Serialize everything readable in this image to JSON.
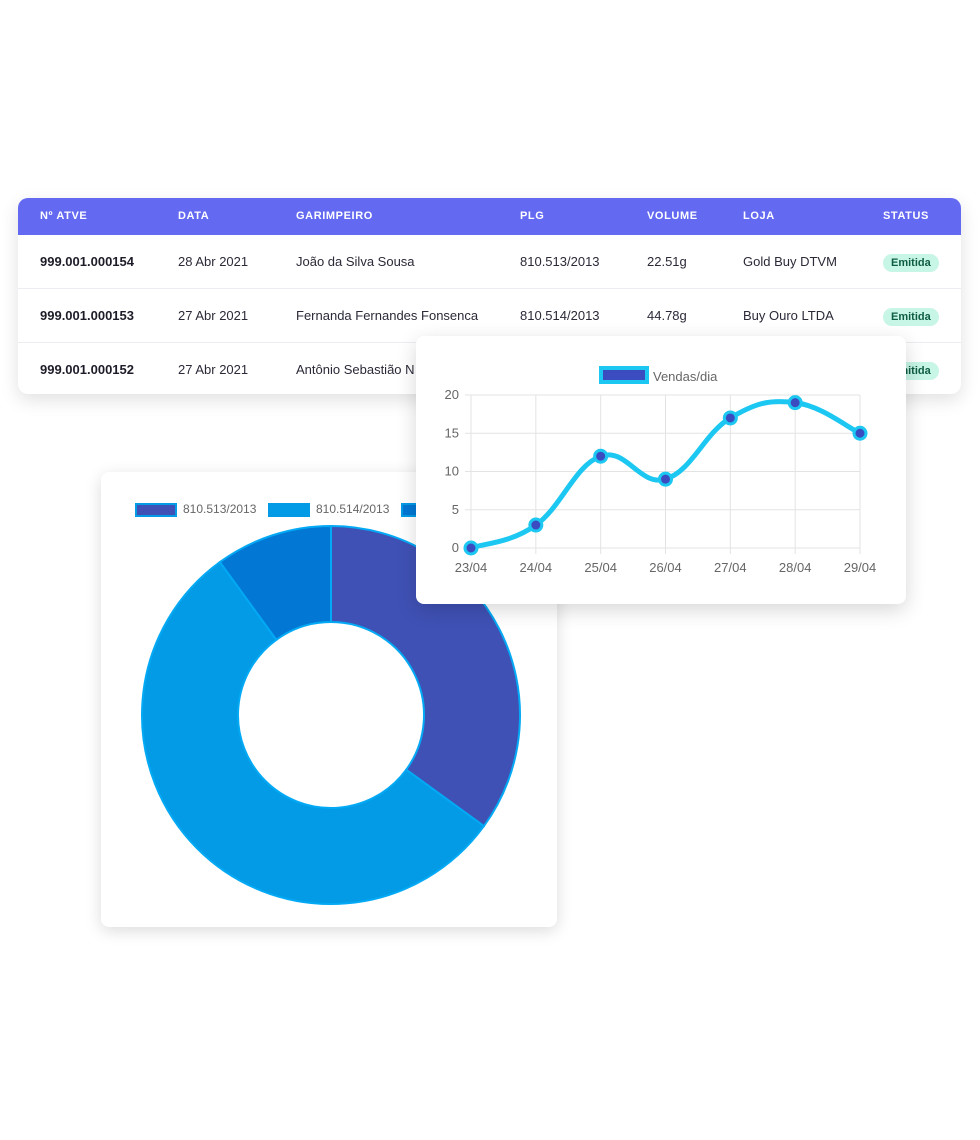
{
  "table": {
    "columns": [
      "Nº ATVE",
      "DATA",
      "GARIMPEIRO",
      "PLG",
      "VOLUME",
      "LOJA",
      "STATUS"
    ],
    "rows": [
      {
        "atve": "999.001.000154",
        "data": "28 Abr 2021",
        "garimpeiro": "João da Silva Sousa",
        "plg": "810.513/2013",
        "volume": "22.51g",
        "loja": "Gold Buy DTVM",
        "status": "Emitida"
      },
      {
        "atve": "999.001.000153",
        "data": "27 Abr 2021",
        "garimpeiro": "Fernanda Fernandes Fonsenca",
        "plg": "810.514/2013",
        "volume": "44.78g",
        "loja": "Buy Ouro LTDA",
        "status": "Emitida"
      },
      {
        "atve": "999.001.000152",
        "data": "27 Abr 2021",
        "garimpeiro": "Antônio Sebastião N",
        "plg": "",
        "volume": "",
        "loja": "",
        "status": "Emitida"
      }
    ]
  },
  "chart_data": [
    {
      "type": "doughnut",
      "labels": [
        "810.513/2013",
        "810.514/2013",
        ""
      ],
      "values": [
        35,
        55,
        10
      ],
      "colors": [
        "#3f51b5",
        "#039be5",
        "#0277d4"
      ],
      "border_color": "#03a9f4",
      "legend": "top"
    },
    {
      "type": "line",
      "x": [
        "23/04",
        "24/04",
        "25/04",
        "26/04",
        "27/04",
        "28/04",
        "29/04"
      ],
      "series": [
        {
          "name": "Vendas/dia",
          "values": [
            0,
            3,
            12,
            9,
            17,
            19,
            15
          ]
        }
      ],
      "yticks": [
        0,
        5,
        10,
        15,
        20
      ],
      "ylim": [
        0,
        20
      ],
      "line_color": "#1cc7f2",
      "point_color": "#3b4cc0",
      "grid": true,
      "legend": "top"
    }
  ]
}
